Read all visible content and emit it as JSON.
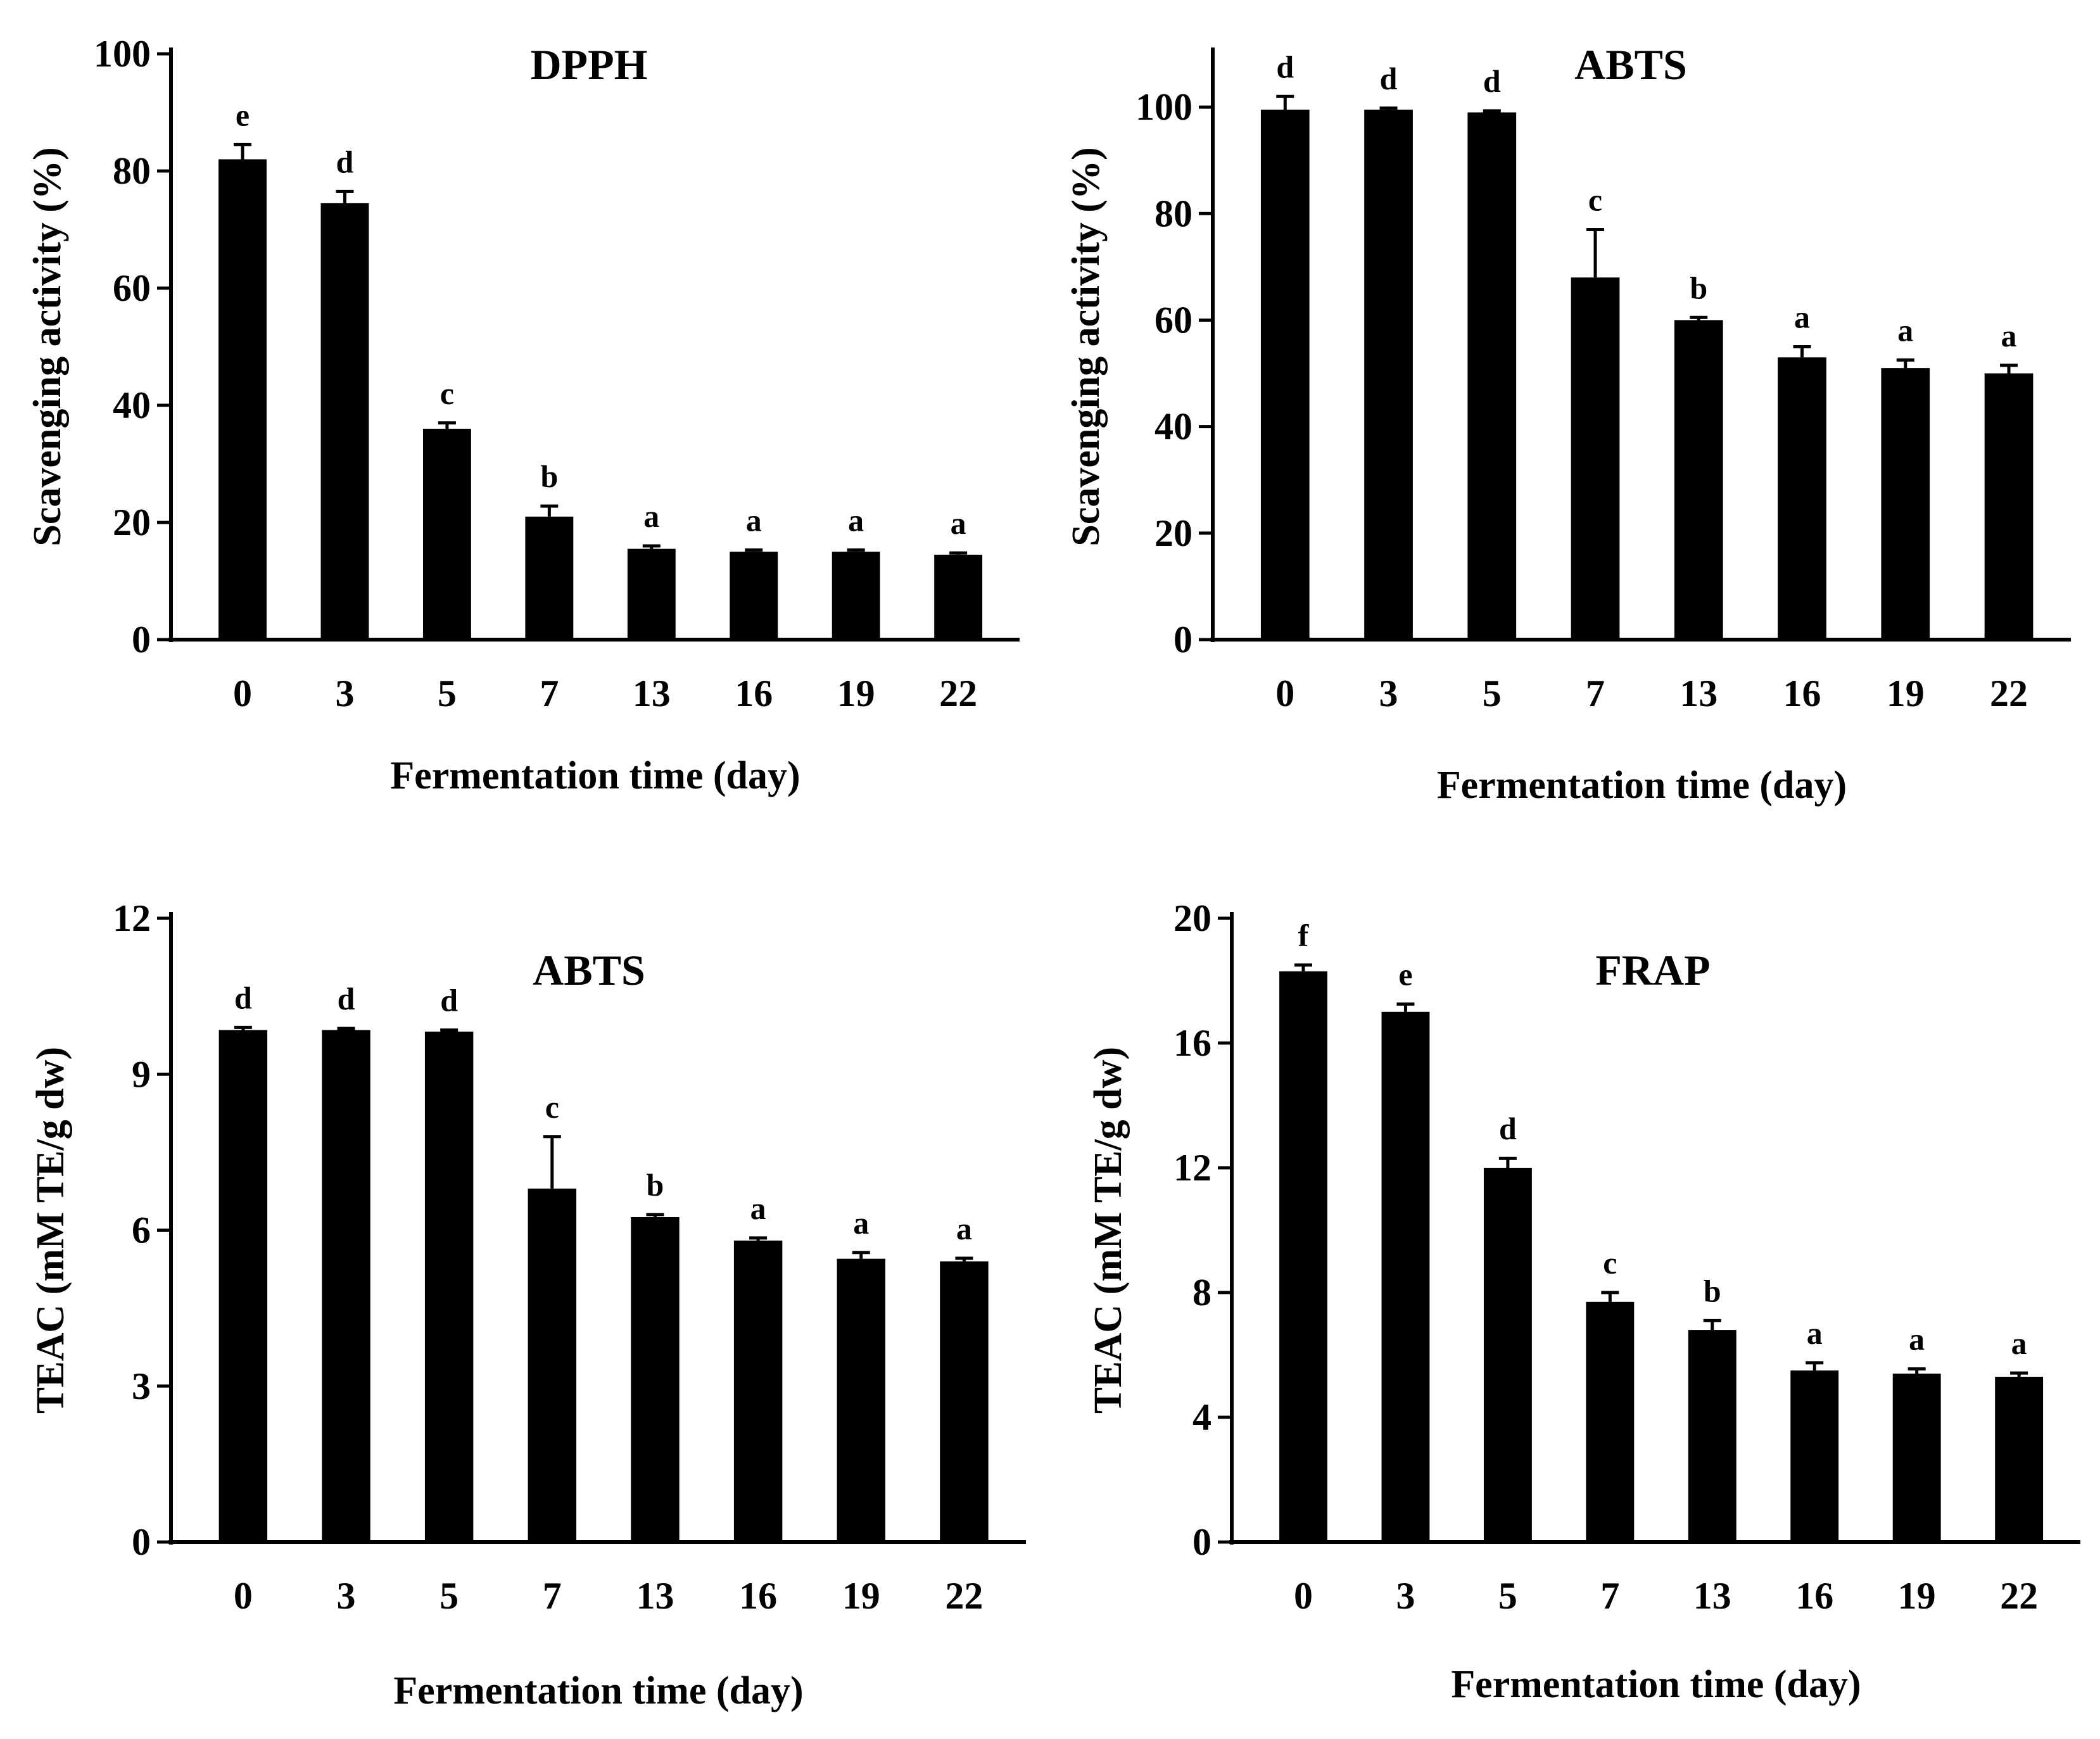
{
  "chart_data": [
    {
      "type": "bar",
      "title": "DPPH",
      "xlabel": "Fermentation time (day)",
      "ylabel": "Scavenging activity (%)",
      "categories": [
        "0",
        "3",
        "5",
        "7",
        "13",
        "16",
        "19",
        "22"
      ],
      "values": [
        82,
        74.5,
        36,
        21,
        15.5,
        15,
        15,
        14.5
      ],
      "errors": [
        2.5,
        2,
        1,
        1.8,
        0.5,
        0.3,
        0.3,
        0.3
      ],
      "significance": [
        "e",
        "d",
        "c",
        "b",
        "a",
        "a",
        "a",
        "a"
      ],
      "ylim": [
        0,
        100
      ],
      "yticks": [
        "0",
        "20",
        "40",
        "60",
        "80",
        "100"
      ],
      "grid": false,
      "color": "#000000"
    },
    {
      "type": "bar",
      "title": "ABTS",
      "xlabel": "Fermentation time (day)",
      "ylabel": "Scavenging activity (%)",
      "categories": [
        "0",
        "3",
        "5",
        "7",
        "13",
        "16",
        "19",
        "22"
      ],
      "values": [
        99.5,
        99.5,
        99,
        68,
        60,
        53,
        51,
        50
      ],
      "errors": [
        2.5,
        0.3,
        0.3,
        9,
        0.5,
        2,
        1.5,
        1.5
      ],
      "significance": [
        "d",
        "d",
        "d",
        "c",
        "b",
        "a",
        "a",
        "a"
      ],
      "ylim": [
        0,
        110
      ],
      "yticks": [
        "0",
        "20",
        "40",
        "60",
        "80",
        "100"
      ],
      "grid": false,
      "color": "#000000"
    },
    {
      "type": "bar",
      "title": "ABTS",
      "xlabel": "Fermentation time (day)",
      "ylabel": "TEAC (mM TE/g dw)",
      "categories": [
        "0",
        "3",
        "5",
        "7",
        "13",
        "16",
        "19",
        "22"
      ],
      "values": [
        9.85,
        9.85,
        9.82,
        6.8,
        6.25,
        5.8,
        5.45,
        5.4
      ],
      "errors": [
        0.05,
        0.03,
        0.03,
        1.0,
        0.05,
        0.05,
        0.12,
        0.06
      ],
      "significance": [
        "d",
        "d",
        "d",
        "c",
        "b",
        "a",
        "a",
        "a"
      ],
      "ylim": [
        0,
        12
      ],
      "yticks": [
        "0",
        "3",
        "6",
        "9",
        "12"
      ],
      "grid": false,
      "color": "#000000"
    },
    {
      "type": "bar",
      "title": "FRAP",
      "xlabel": "Fermentation time (day)",
      "ylabel": "TEAC (mM TE/g dw)",
      "categories": [
        "0",
        "3",
        "5",
        "7",
        "13",
        "16",
        "19",
        "22"
      ],
      "values": [
        18.3,
        17.0,
        12.0,
        7.7,
        6.8,
        5.5,
        5.4,
        5.3
      ],
      "errors": [
        0.2,
        0.25,
        0.3,
        0.3,
        0.3,
        0.25,
        0.15,
        0.12
      ],
      "significance": [
        "f",
        "e",
        "d",
        "c",
        "b",
        "a",
        "a",
        "a"
      ],
      "ylim": [
        0,
        20
      ],
      "yticks": [
        "0",
        "4",
        "8",
        "12",
        "16",
        "20"
      ],
      "grid": false,
      "color": "#000000"
    }
  ]
}
